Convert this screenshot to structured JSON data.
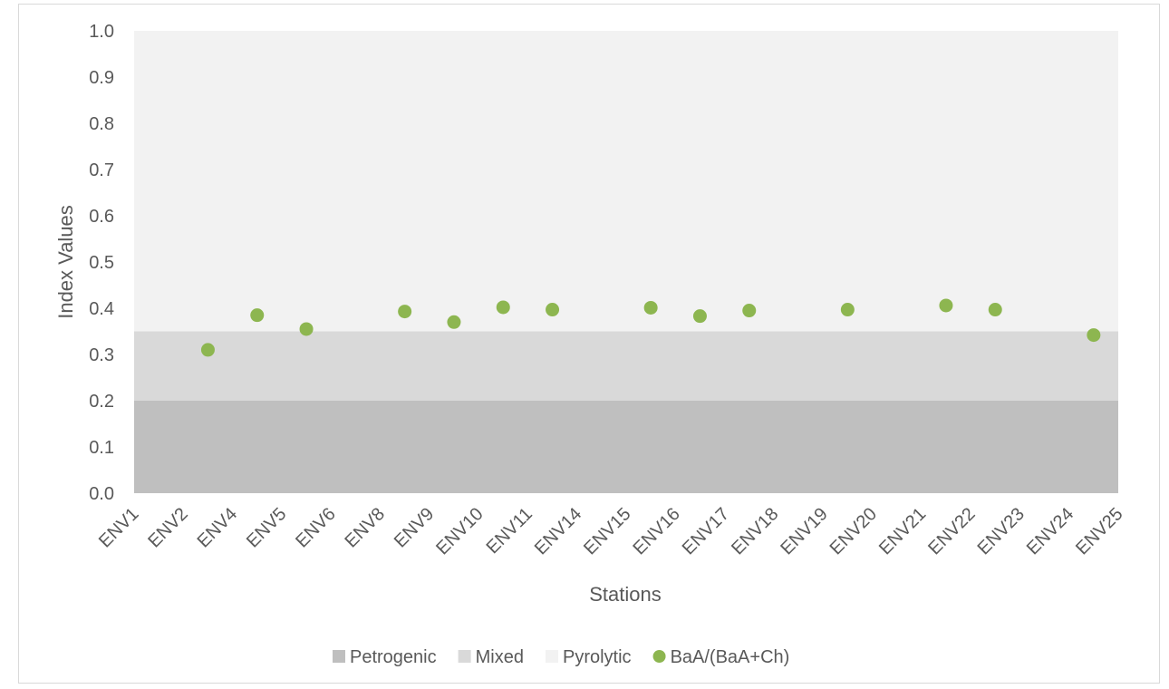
{
  "chart_data": {
    "type": "scatter",
    "title": "",
    "xlabel": "Stations",
    "ylabel": "Index Values",
    "ylim": [
      0,
      1.0
    ],
    "yticks": [
      "0.0",
      "0.1",
      "0.2",
      "0.3",
      "0.4",
      "0.5",
      "0.6",
      "0.7",
      "0.8",
      "0.9",
      "1.0"
    ],
    "categories": [
      "ENV1",
      "ENV2",
      "ENV4",
      "ENV5",
      "ENV6",
      "ENV8",
      "ENV9",
      "ENV10",
      "ENV11",
      "ENV14",
      "ENV15",
      "ENV16",
      "ENV17",
      "ENV18",
      "ENV19",
      "ENV20",
      "ENV21",
      "ENV22",
      "ENV23",
      "ENV24",
      "ENV25"
    ],
    "bands": [
      {
        "name": "Petrogenic",
        "from": 0,
        "to": 0.2,
        "color": "#bfbfbf"
      },
      {
        "name": "Mixed",
        "from": 0.2,
        "to": 0.35,
        "color": "#d9d9d9"
      },
      {
        "name": "Pyrolytic",
        "from": 0.35,
        "to": 1.0,
        "color": "#f2f2f2"
      }
    ],
    "series": [
      {
        "name": "BaA/(BaA+Ch)",
        "color": "#8db650",
        "points": [
          {
            "x": "ENV2",
            "y": 0.31
          },
          {
            "x": "ENV4",
            "y": 0.385
          },
          {
            "x": "ENV5",
            "y": 0.355
          },
          {
            "x": "ENV8",
            "y": 0.393
          },
          {
            "x": "ENV9",
            "y": 0.37
          },
          {
            "x": "ENV10",
            "y": 0.402
          },
          {
            "x": "ENV11",
            "y": 0.397
          },
          {
            "x": "ENV15",
            "y": 0.401
          },
          {
            "x": "ENV16",
            "y": 0.383
          },
          {
            "x": "ENV17",
            "y": 0.395
          },
          {
            "x": "ENV19",
            "y": 0.397
          },
          {
            "x": "ENV21",
            "y": 0.406
          },
          {
            "x": "ENV22",
            "y": 0.397
          },
          {
            "x": "ENV24",
            "y": 0.342
          }
        ]
      }
    ],
    "legend": [
      {
        "label": "Petrogenic",
        "marker": "square",
        "color": "#bfbfbf"
      },
      {
        "label": "Mixed",
        "marker": "square",
        "color": "#d9d9d9"
      },
      {
        "label": "Pyrolytic",
        "marker": "square",
        "color": "#f2f2f2"
      },
      {
        "label": "BaA/(BaA+Ch)",
        "marker": "circle",
        "color": "#8db650"
      }
    ],
    "legend_position": "bottom",
    "grid": false
  }
}
